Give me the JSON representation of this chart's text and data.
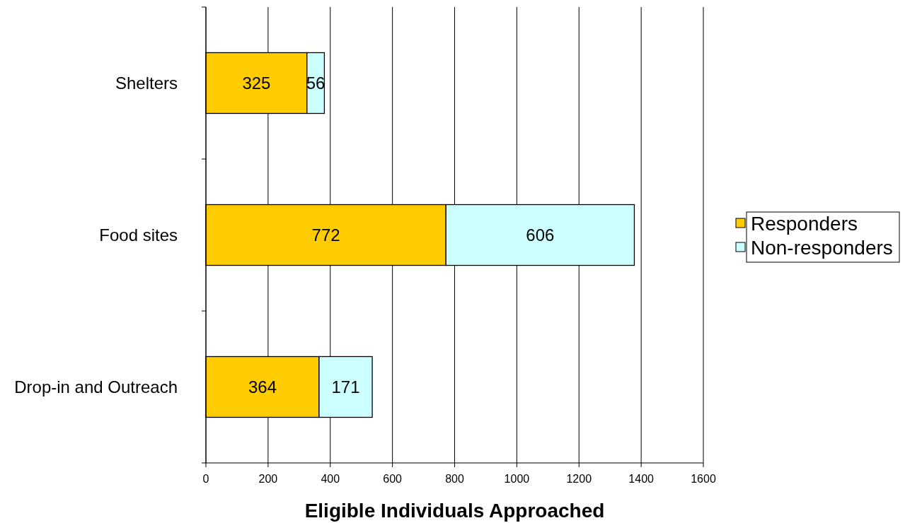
{
  "chart_data": {
    "type": "bar",
    "orientation": "horizontal",
    "stacked": true,
    "xlabel": "Eligible Individuals Approached",
    "categories": [
      "Shelters",
      "Food sites",
      "Drop-in and Outreach"
    ],
    "series": [
      {
        "name": "Responders",
        "color": "#ffcc00",
        "values": [
          325,
          772,
          364
        ]
      },
      {
        "name": "Non-responders",
        "color": "#ccffff",
        "values": [
          56,
          606,
          171
        ]
      }
    ],
    "xlim": [
      0,
      1600
    ],
    "xticks": [
      0,
      200,
      400,
      600,
      800,
      1000,
      1200,
      1400,
      1600
    ],
    "grid": "x",
    "legend": "right",
    "data_labels": true
  }
}
